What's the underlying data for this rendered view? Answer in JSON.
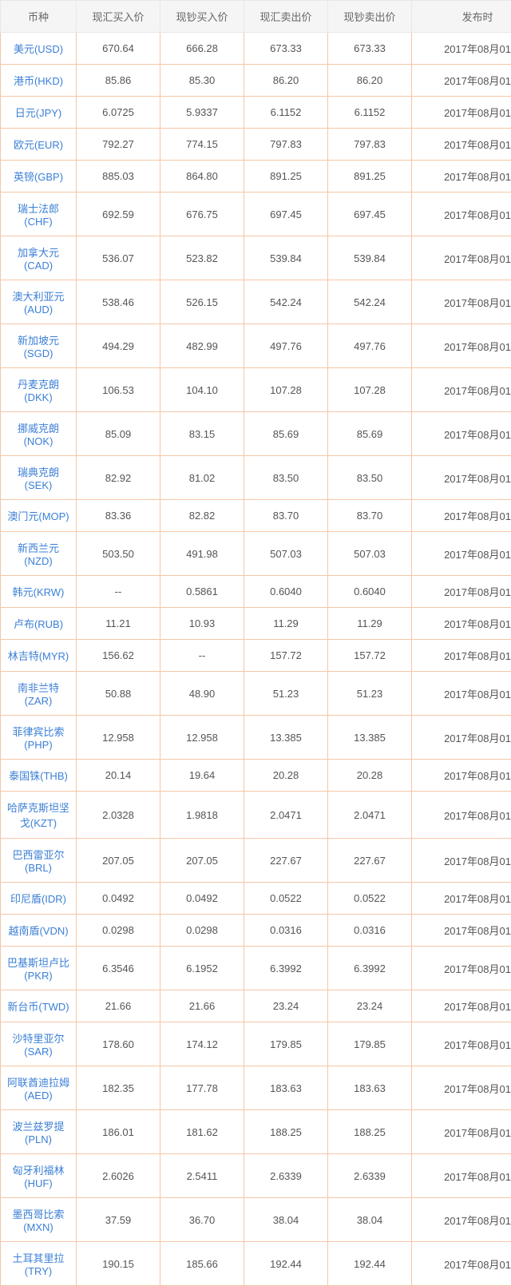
{
  "columns": [
    "币种",
    "现汇买入价",
    "现钞买入价",
    "现汇卖出价",
    "现钞卖出价",
    "发布时"
  ],
  "date": "2017年08月01",
  "rows": [
    {
      "name": "美元(USD)",
      "xhbuy": "670.64",
      "xcbuy": "666.28",
      "xhsell": "673.33",
      "xcsell": "673.33"
    },
    {
      "name": "港币(HKD)",
      "xhbuy": "85.86",
      "xcbuy": "85.30",
      "xhsell": "86.20",
      "xcsell": "86.20"
    },
    {
      "name": "日元(JPY)",
      "xhbuy": "6.0725",
      "xcbuy": "5.9337",
      "xhsell": "6.1152",
      "xcsell": "6.1152"
    },
    {
      "name": "欧元(EUR)",
      "xhbuy": "792.27",
      "xcbuy": "774.15",
      "xhsell": "797.83",
      "xcsell": "797.83"
    },
    {
      "name": "英镑(GBP)",
      "xhbuy": "885.03",
      "xcbuy": "864.80",
      "xhsell": "891.25",
      "xcsell": "891.25"
    },
    {
      "name": "瑞士法郎(CHF)",
      "xhbuy": "692.59",
      "xcbuy": "676.75",
      "xhsell": "697.45",
      "xcsell": "697.45"
    },
    {
      "name": "加拿大元(CAD)",
      "xhbuy": "536.07",
      "xcbuy": "523.82",
      "xhsell": "539.84",
      "xcsell": "539.84"
    },
    {
      "name": "澳大利亚元(AUD)",
      "xhbuy": "538.46",
      "xcbuy": "526.15",
      "xhsell": "542.24",
      "xcsell": "542.24"
    },
    {
      "name": "新加坡元(SGD)",
      "xhbuy": "494.29",
      "xcbuy": "482.99",
      "xhsell": "497.76",
      "xcsell": "497.76"
    },
    {
      "name": "丹麦克朗(DKK)",
      "xhbuy": "106.53",
      "xcbuy": "104.10",
      "xhsell": "107.28",
      "xcsell": "107.28"
    },
    {
      "name": "挪威克朗(NOK)",
      "xhbuy": "85.09",
      "xcbuy": "83.15",
      "xhsell": "85.69",
      "xcsell": "85.69"
    },
    {
      "name": "瑞典克朗(SEK)",
      "xhbuy": "82.92",
      "xcbuy": "81.02",
      "xhsell": "83.50",
      "xcsell": "83.50"
    },
    {
      "name": "澳门元(MOP)",
      "xhbuy": "83.36",
      "xcbuy": "82.82",
      "xhsell": "83.70",
      "xcsell": "83.70"
    },
    {
      "name": "新西兰元(NZD)",
      "xhbuy": "503.50",
      "xcbuy": "491.98",
      "xhsell": "507.03",
      "xcsell": "507.03"
    },
    {
      "name": "韩元(KRW)",
      "xhbuy": "--",
      "xcbuy": "0.5861",
      "xhsell": "0.6040",
      "xcsell": "0.6040"
    },
    {
      "name": "卢布(RUB)",
      "xhbuy": "11.21",
      "xcbuy": "10.93",
      "xhsell": "11.29",
      "xcsell": "11.29"
    },
    {
      "name": "林吉特(MYR)",
      "xhbuy": "156.62",
      "xcbuy": "--",
      "xhsell": "157.72",
      "xcsell": "157.72"
    },
    {
      "name": "南非兰特(ZAR)",
      "xhbuy": "50.88",
      "xcbuy": "48.90",
      "xhsell": "51.23",
      "xcsell": "51.23"
    },
    {
      "name": "菲律宾比索(PHP)",
      "xhbuy": "12.958",
      "xcbuy": "12.958",
      "xhsell": "13.385",
      "xcsell": "13.385"
    },
    {
      "name": "泰国铢(THB)",
      "xhbuy": "20.14",
      "xcbuy": "19.64",
      "xhsell": "20.28",
      "xcsell": "20.28"
    },
    {
      "name": "哈萨克斯坦坚戈(KZT)",
      "xhbuy": "2.0328",
      "xcbuy": "1.9818",
      "xhsell": "2.0471",
      "xcsell": "2.0471"
    },
    {
      "name": "巴西雷亚尔(BRL)",
      "xhbuy": "207.05",
      "xcbuy": "207.05",
      "xhsell": "227.67",
      "xcsell": "227.67"
    },
    {
      "name": "印尼盾(IDR)",
      "xhbuy": "0.0492",
      "xcbuy": "0.0492",
      "xhsell": "0.0522",
      "xcsell": "0.0522"
    },
    {
      "name": "越南盾(VDN)",
      "xhbuy": "0.0298",
      "xcbuy": "0.0298",
      "xhsell": "0.0316",
      "xcsell": "0.0316"
    },
    {
      "name": "巴基斯坦卢比(PKR)",
      "xhbuy": "6.3546",
      "xcbuy": "6.1952",
      "xhsell": "6.3992",
      "xcsell": "6.3992"
    },
    {
      "name": "新台币(TWD)",
      "xhbuy": "21.66",
      "xcbuy": "21.66",
      "xhsell": "23.24",
      "xcsell": "23.24"
    },
    {
      "name": "沙特里亚尔(SAR)",
      "xhbuy": "178.60",
      "xcbuy": "174.12",
      "xhsell": "179.85",
      "xcsell": "179.85"
    },
    {
      "name": "阿联酋迪拉姆(AED)",
      "xhbuy": "182.35",
      "xcbuy": "177.78",
      "xhsell": "183.63",
      "xcsell": "183.63"
    },
    {
      "name": "波兰兹罗提(PLN)",
      "xhbuy": "186.01",
      "xcbuy": "181.62",
      "xhsell": "188.25",
      "xcsell": "188.25"
    },
    {
      "name": "匈牙利福林(HUF)",
      "xhbuy": "2.6026",
      "xcbuy": "2.5411",
      "xhsell": "2.6339",
      "xcsell": "2.6339"
    },
    {
      "name": "墨西哥比索(MXN)",
      "xhbuy": "37.59",
      "xcbuy": "36.70",
      "xhsell": "38.04",
      "xcsell": "38.04"
    },
    {
      "name": "土耳其里拉(TRY)",
      "xhbuy": "190.15",
      "xcbuy": "185.66",
      "xhsell": "192.44",
      "xcsell": "192.44"
    }
  ]
}
